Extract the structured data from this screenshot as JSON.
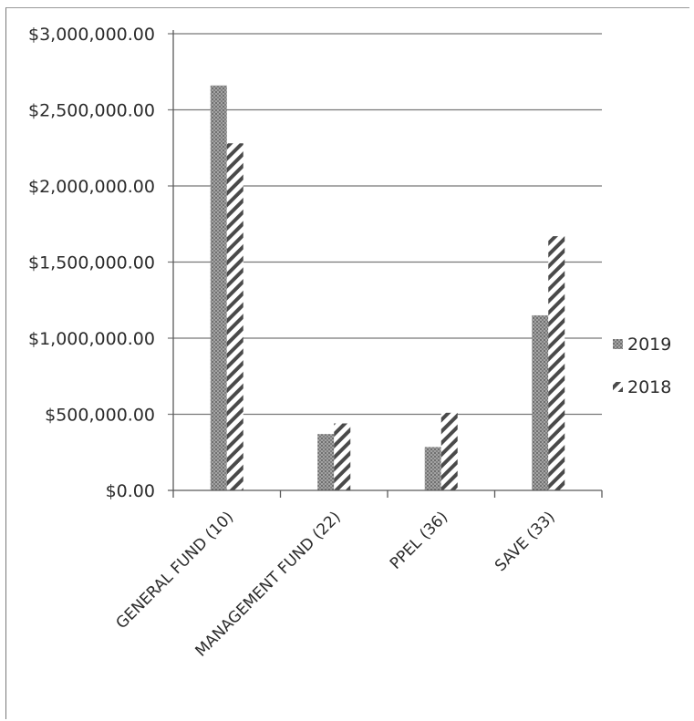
{
  "chart_data": {
    "type": "bar",
    "title": "",
    "xlabel": "",
    "ylabel": "",
    "categories": [
      "GENERAL FUND (10)",
      "MANAGEMENT FUND (22)",
      "PPEL (36)",
      "SAVE (33)"
    ],
    "series": [
      {
        "name": "2019",
        "values": [
          2660000,
          370000,
          285000,
          1150000
        ],
        "pattern": "dots",
        "color": "#8c8c8c"
      },
      {
        "name": "2018",
        "values": [
          2280000,
          440000,
          510000,
          1670000
        ],
        "pattern": "diagonal-hatch",
        "color": "#555555"
      }
    ],
    "ylim": [
      0,
      3000000
    ],
    "yticks": [
      0,
      500000,
      1000000,
      1500000,
      2000000,
      2500000,
      3000000
    ],
    "ytick_labels": [
      "$0.00",
      "$500,000.00",
      "$1,000,000.00",
      "$1,500,000.00",
      "$2,000,000.00",
      "$2,500,000.00",
      "$3,000,000.00"
    ],
    "grid": true,
    "legend_position": "right"
  }
}
